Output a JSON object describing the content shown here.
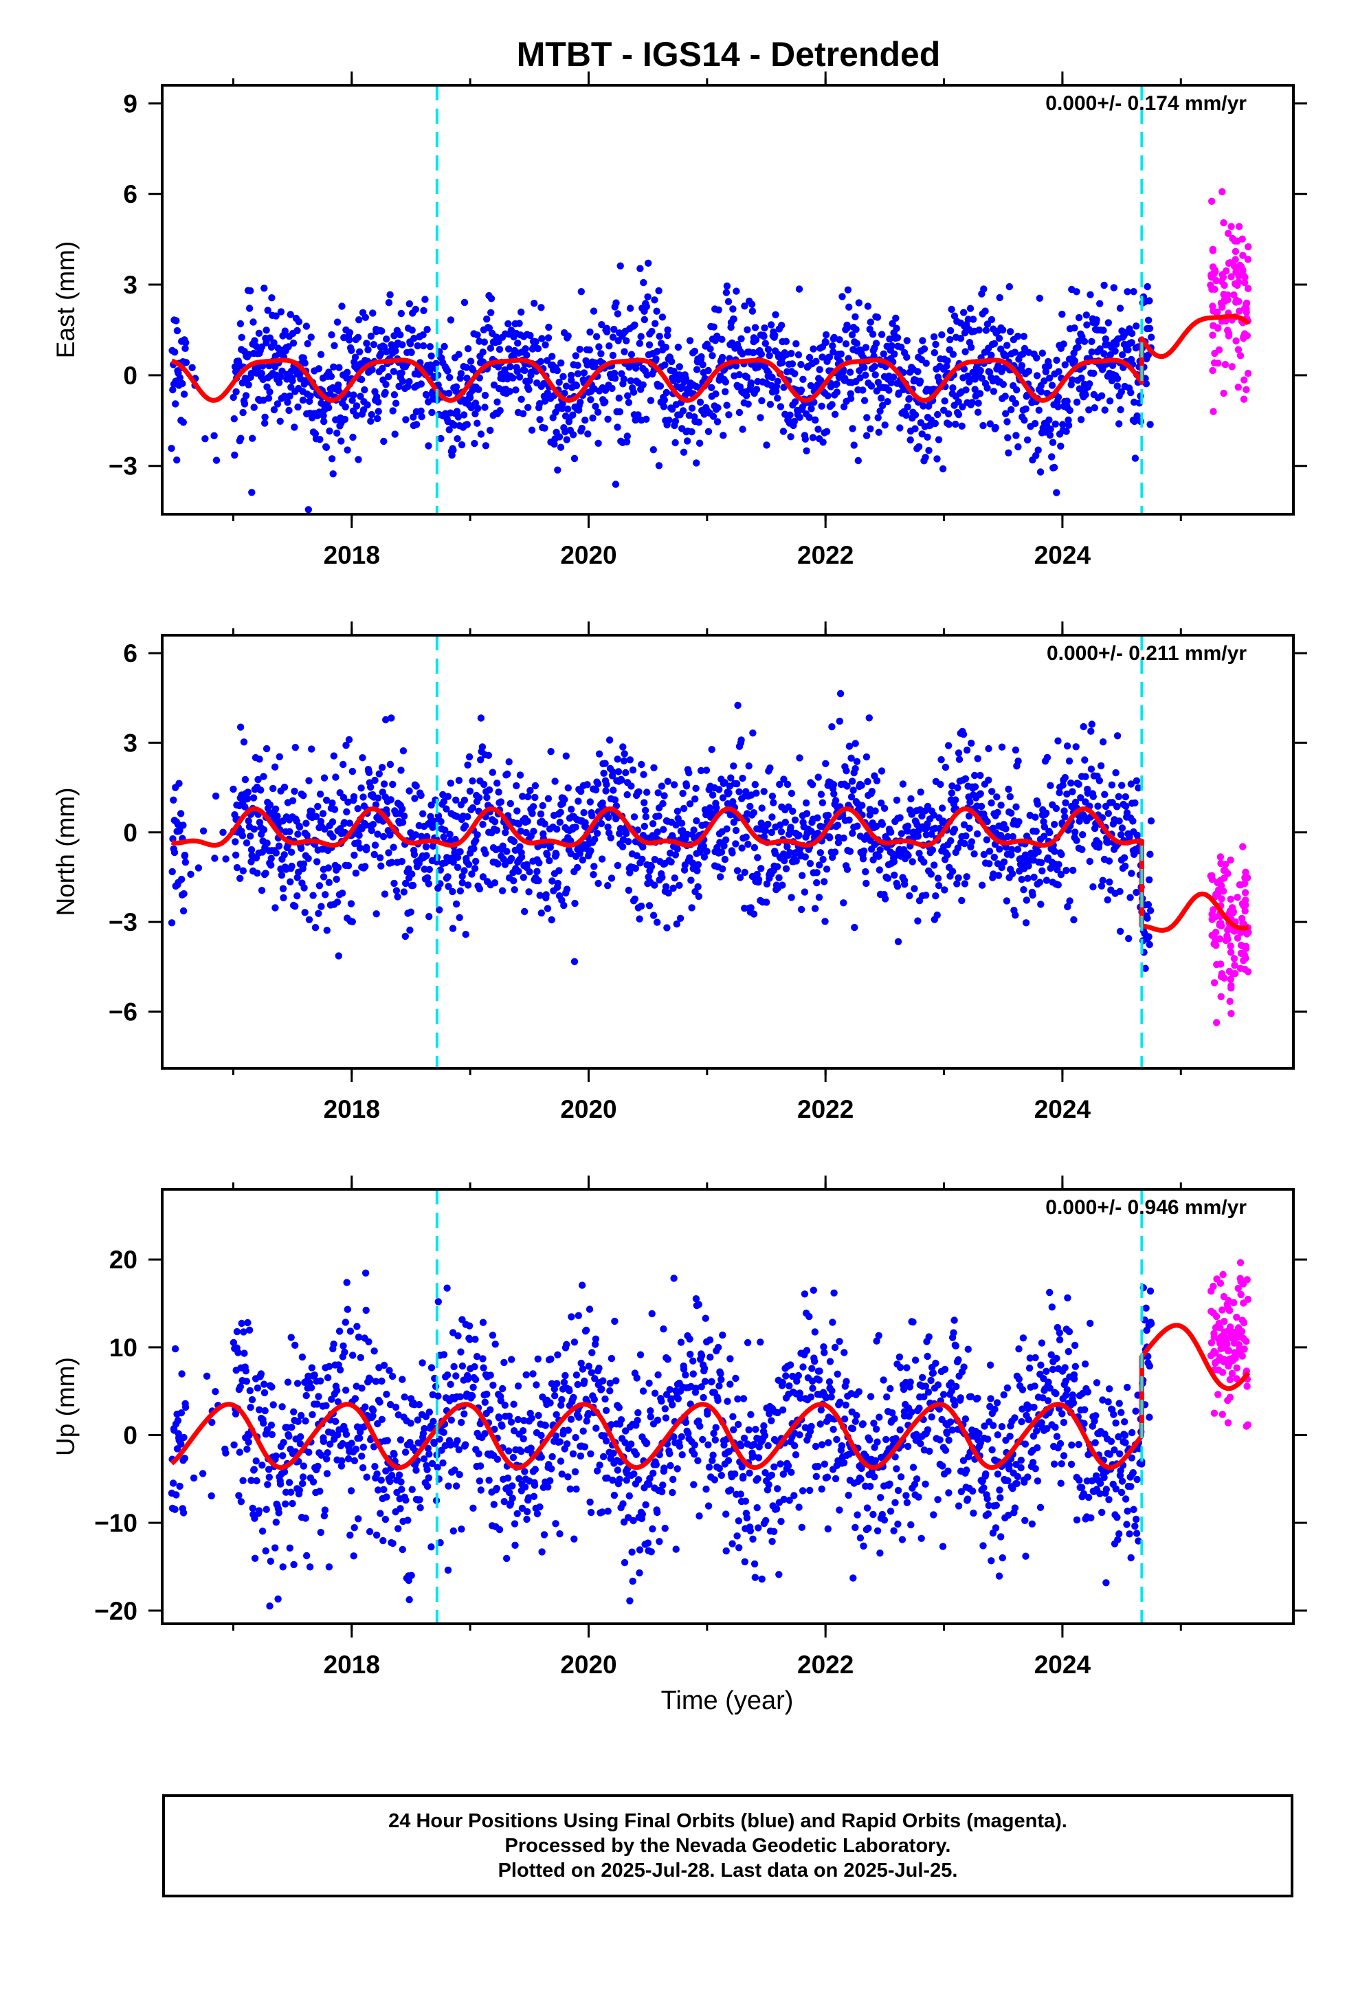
{
  "title": "MTBT - IGS14 - Detrended",
  "xlabel": "Time (year)",
  "footer": [
    "24 Hour Positions Using Final Orbits (blue) and Rapid Orbits (magenta).",
    "Processed by the Nevada Geodetic Laboratory.",
    "Plotted on 2025-Jul-28. Last data on 2025-Jul-25."
  ],
  "colors": {
    "final_orbits": "#0000ff",
    "rapid_orbits": "#ff00ff",
    "model": "#ff0000",
    "steps": "#00e5ee",
    "frame": "#000000"
  },
  "chart_data": [
    {
      "type": "scatter",
      "name": "east",
      "ylabel": "East (mm)",
      "rate": "0.000+/- 0.174 mm/yr",
      "xlim": [
        2016.4,
        2025.95
      ],
      "ylim": [
        -4.6,
        9.6
      ],
      "xticks": [
        2018,
        2020,
        2022,
        2024
      ],
      "xminor": [
        2017,
        2018,
        2019,
        2020,
        2021,
        2022,
        2023,
        2024,
        2025
      ],
      "yticks": [
        -3,
        0,
        3,
        6,
        9
      ],
      "step_lines": [
        2018.72,
        2024.67
      ],
      "final_range": [
        2016.48,
        2024.75
      ],
      "rapid_range": [
        2025.25,
        2025.57
      ],
      "model": {
        "segments": [
          [
            2016.48,
            2024.67
          ],
          [
            2024.67,
            2025.57
          ]
        ],
        "offsets": [
          0.0,
          1.45
        ],
        "annual_sin": 0.55,
        "annual_cos": -0.35,
        "semi_sin": 0.15,
        "semi_cos": 0.1
      },
      "scatter_sd": 1.05,
      "rapid_sd": 2.2,
      "rapid_mean": 2.6
    },
    {
      "type": "scatter",
      "name": "north",
      "ylabel": "North (mm)",
      "rate": "0.000+/- 0.211 mm/yr",
      "xlim": [
        2016.4,
        2025.95
      ],
      "ylim": [
        -7.9,
        6.6
      ],
      "xticks": [
        2018,
        2020,
        2022,
        2024
      ],
      "xminor": [
        2017,
        2018,
        2019,
        2020,
        2021,
        2022,
        2023,
        2024,
        2025
      ],
      "yticks": [
        -6,
        -3,
        0,
        3,
        6
      ],
      "step_lines": [
        2018.72,
        2024.67
      ],
      "final_range": [
        2016.48,
        2024.75
      ],
      "rapid_range": [
        2025.25,
        2025.57
      ],
      "model": {
        "segments": [
          [
            2016.48,
            2024.67
          ],
          [
            2024.67,
            2025.57
          ]
        ],
        "offsets": [
          0.0,
          -2.85
        ],
        "annual_sin": 0.5,
        "annual_cos": 0.2,
        "semi_sin": 0.2,
        "semi_cos": -0.15
      },
      "scatter_sd": 1.25,
      "rapid_sd": 1.7,
      "rapid_mean": -3.0
    },
    {
      "type": "scatter",
      "name": "up",
      "ylabel": "Up (mm)",
      "rate": "0.000+/- 0.946 mm/yr",
      "xlim": [
        2016.4,
        2025.95
      ],
      "ylim": [
        -21.5,
        28.0
      ],
      "xticks": [
        2018,
        2020,
        2022,
        2024
      ],
      "xminor": [
        2017,
        2018,
        2019,
        2020,
        2021,
        2022,
        2023,
        2024,
        2025
      ],
      "yticks": [
        -20,
        -10,
        0,
        10,
        20
      ],
      "step_lines": [
        2018.72,
        2024.67
      ],
      "final_range": [
        2016.48,
        2024.75
      ],
      "rapid_range": [
        2025.25,
        2025.57
      ],
      "model": {
        "segments": [
          [
            2016.48,
            2024.67
          ],
          [
            2024.67,
            2025.57
          ]
        ],
        "offsets": [
          0.0,
          9.0
        ],
        "annual_sin": -1.5,
        "annual_cos": 3.2,
        "semi_sin": 0.3,
        "semi_cos": 0.2
      },
      "scatter_sd": 5.6,
      "rapid_sd": 6.0,
      "rapid_mean": 11.0
    }
  ]
}
